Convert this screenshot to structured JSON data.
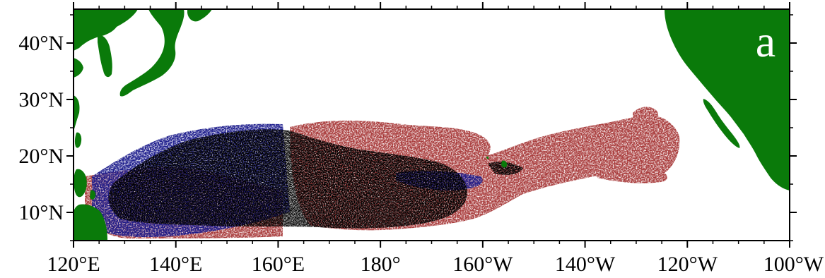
{
  "map": {
    "panel_label": "a",
    "extent": {
      "lon_west": 120,
      "lon_east": 260,
      "lat_south": 5,
      "lat_north": 46
    },
    "x_ticks": [
      {
        "lon": 120,
        "label": "120°E"
      },
      {
        "lon": 140,
        "label": "140°E"
      },
      {
        "lon": 160,
        "label": "160°E"
      },
      {
        "lon": 180,
        "label": "180°"
      },
      {
        "lon": 200,
        "label": "160°W"
      },
      {
        "lon": 220,
        "label": "140°W"
      },
      {
        "lon": 240,
        "label": "120°W"
      },
      {
        "lon": 260,
        "label": "100°W"
      }
    ],
    "y_ticks": [
      {
        "lat": 10,
        "label": "10°N"
      },
      {
        "lat": 20,
        "label": "20°N"
      },
      {
        "lat": 30,
        "label": "30°N"
      },
      {
        "lat": 40,
        "label": "40°N"
      }
    ],
    "colors": {
      "land": "#0a7a0a",
      "red_cluster": "#a83a3a",
      "blue_cluster": "#1c1c8c",
      "black_cluster": "#000000",
      "ocean": "#ffffff"
    }
  }
}
